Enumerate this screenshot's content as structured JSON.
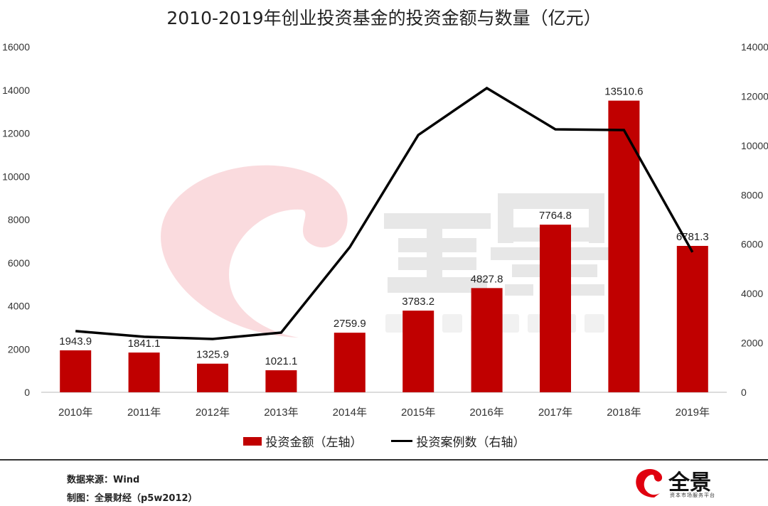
{
  "chart_data": {
    "type": "bar+line",
    "title": "2010-2019年创业投资基金的投资金额与数量（亿元）",
    "categories": [
      "2010年",
      "2011年",
      "2012年",
      "2013年",
      "2014年",
      "2015年",
      "2016年",
      "2017年",
      "2018年",
      "2019年"
    ],
    "series": [
      {
        "name": "投资金额（左轴）",
        "type": "bar",
        "axis": "left",
        "color": "#c00000",
        "values": [
          1943.9,
          1841.1,
          1325.9,
          1021.1,
          2759.9,
          3783.2,
          4827.8,
          7764.8,
          13510.6,
          6781.3
        ],
        "labels": [
          "1943.9",
          "1841.1",
          "1325.9",
          "1021.1",
          "2759.9",
          "3783.2",
          "4827.8",
          "7764.8",
          "13510.6",
          "6781.3"
        ]
      },
      {
        "name": "投资案例数（右轴）",
        "type": "line",
        "axis": "right",
        "color": "#000000",
        "values": [
          2480,
          2250,
          2160,
          2420,
          5880,
          10430,
          12330,
          10660,
          10630,
          5680
        ]
      }
    ],
    "left_axis": {
      "ylim": [
        0,
        16000
      ],
      "ticks": [
        "0",
        "2000",
        "4000",
        "6000",
        "8000",
        "10000",
        "12000",
        "14000",
        "16000"
      ]
    },
    "right_axis": {
      "ylim": [
        0,
        14000
      ],
      "ticks": [
        "0",
        "2000",
        "4000",
        "6000",
        "8000",
        "10000",
        "12000",
        "14000"
      ]
    },
    "grid": false,
    "legend_position": "bottom"
  },
  "watermark": {
    "text": "全景",
    "subtext": "资本市场服务平台"
  },
  "footer": {
    "source": "数据来源：Wind",
    "credit": "制图：全景财经（p5w2012）"
  },
  "logo": {
    "text": "全景",
    "subtext": "资本市场服务平台"
  }
}
